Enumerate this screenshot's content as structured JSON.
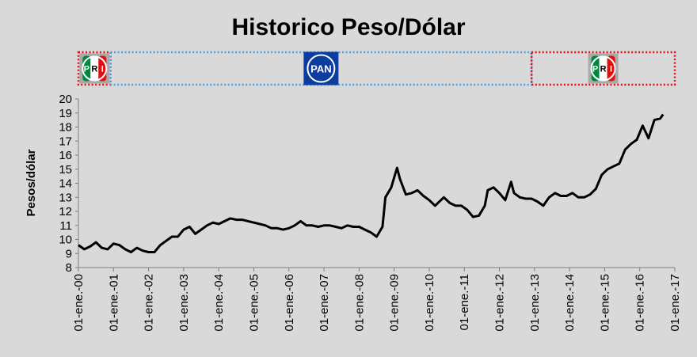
{
  "chart_data": {
    "type": "line",
    "title": "Historico Peso/Dólar",
    "ylabel": "Pesos/dólar",
    "xlabel": "",
    "ylim": [
      8,
      20
    ],
    "yticks": [
      8,
      9,
      10,
      11,
      12,
      13,
      14,
      15,
      16,
      17,
      18,
      19,
      20
    ],
    "xlim": [
      "2000-01-01",
      "2017-01-01"
    ],
    "xtick_labels": [
      "01-ene.-00",
      "01-ene.-01",
      "01-ene.-02",
      "01-ene.-03",
      "01-ene.-04",
      "01-ene.-05",
      "01-ene.-06",
      "01-ene.-07",
      "01-ene.-08",
      "01-ene.-09",
      "01-ene.-10",
      "01-ene.-11",
      "01-ene.-12",
      "01-ene.-13",
      "01-ene.-14",
      "01-ene.-15",
      "01-ene.-16",
      "01-ene.-17"
    ],
    "grid": false,
    "line_color": "#000000",
    "series": [
      {
        "x": [
          "2000-01",
          "2000-03",
          "2000-05",
          "2000-07",
          "2000-09",
          "2000-11",
          "2001-01",
          "2001-03",
          "2001-05",
          "2001-07",
          "2001-09",
          "2001-11",
          "2002-01",
          "2002-03",
          "2002-05",
          "2002-07",
          "2002-09",
          "2002-11",
          "2003-01",
          "2003-03",
          "2003-05",
          "2003-07",
          "2003-09",
          "2003-11",
          "2004-01",
          "2004-03",
          "2004-05",
          "2004-07",
          "2004-09",
          "2004-11",
          "2005-01",
          "2005-03",
          "2005-05",
          "2005-07",
          "2005-09",
          "2005-11",
          "2006-01",
          "2006-03",
          "2006-05",
          "2006-07",
          "2006-09",
          "2006-11",
          "2007-01",
          "2007-03",
          "2007-05",
          "2007-07",
          "2007-09",
          "2007-11",
          "2008-01",
          "2008-03",
          "2008-05",
          "2008-07",
          "2008-09",
          "2008-10",
          "2008-12",
          "2009-01",
          "2009-02",
          "2009-03",
          "2009-05",
          "2009-07",
          "2009-09",
          "2009-11",
          "2010-01",
          "2010-03",
          "2010-05",
          "2010-06",
          "2010-08",
          "2010-10",
          "2010-12",
          "2011-02",
          "2011-04",
          "2011-06",
          "2011-08",
          "2011-09",
          "2011-11",
          "2012-01",
          "2012-03",
          "2012-05",
          "2012-06",
          "2012-08",
          "2012-10",
          "2012-12",
          "2013-02",
          "2013-04",
          "2013-06",
          "2013-08",
          "2013-10",
          "2013-12",
          "2014-02",
          "2014-04",
          "2014-06",
          "2014-08",
          "2014-10",
          "2014-12",
          "2015-02",
          "2015-04",
          "2015-06",
          "2015-08",
          "2015-10",
          "2015-12",
          "2016-02",
          "2016-04",
          "2016-06",
          "2016-08",
          "2016-09"
        ],
        "y": [
          9.6,
          9.3,
          9.5,
          9.8,
          9.4,
          9.3,
          9.7,
          9.6,
          9.3,
          9.1,
          9.4,
          9.2,
          9.1,
          9.1,
          9.6,
          9.9,
          10.2,
          10.2,
          10.7,
          10.9,
          10.4,
          10.7,
          11.0,
          11.2,
          11.1,
          11.3,
          11.5,
          11.4,
          11.4,
          11.3,
          11.2,
          11.1,
          11.0,
          10.8,
          10.8,
          10.7,
          10.8,
          11.0,
          11.3,
          11.0,
          11.0,
          10.9,
          11.0,
          11.0,
          10.9,
          10.8,
          11.0,
          10.9,
          10.9,
          10.7,
          10.5,
          10.2,
          10.9,
          13.0,
          13.7,
          14.4,
          15.1,
          14.3,
          13.2,
          13.3,
          13.5,
          13.1,
          12.8,
          12.4,
          12.8,
          13.0,
          12.6,
          12.4,
          12.4,
          12.1,
          11.6,
          11.7,
          12.4,
          13.5,
          13.7,
          13.3,
          12.8,
          14.1,
          13.3,
          13.0,
          12.9,
          12.9,
          12.7,
          12.4,
          13.0,
          13.3,
          13.1,
          13.1,
          13.3,
          13.0,
          13.0,
          13.2,
          13.6,
          14.6,
          15.0,
          15.2,
          15.4,
          16.4,
          16.8,
          17.1,
          18.1,
          17.2,
          18.5,
          18.6,
          18.9
        ]
      }
    ]
  },
  "period_bars": [
    {
      "party": "PRI",
      "start": "2000-01-01",
      "end": "2000-12-01",
      "border_color": "#e01010",
      "logo_text": [
        "P",
        "R",
        "I"
      ]
    },
    {
      "party": "PAN",
      "start": "2000-12-01",
      "end": "2012-12-01",
      "border_color": "#4a9fe0",
      "logo_text": "PAN",
      "logo_color": "#0b3c9f"
    },
    {
      "party": "PRI",
      "start": "2012-12-01",
      "end": "2017-01-01",
      "border_color": "#e01010",
      "logo_text": [
        "P",
        "R",
        "I"
      ]
    }
  ],
  "pri_colors": [
    "#00873e",
    "#ffffff",
    "#e01010"
  ]
}
